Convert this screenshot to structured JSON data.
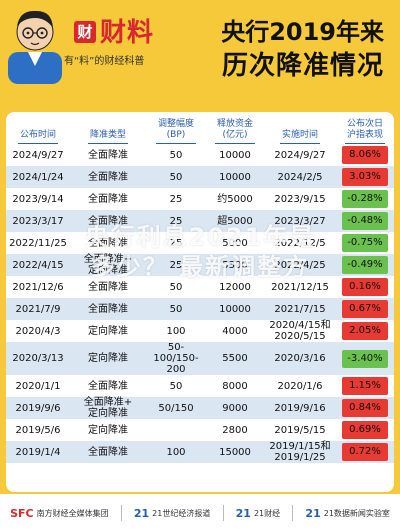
{
  "brand": {
    "logo": "财",
    "name": "财料",
    "tagline": "有“料”的财经科普"
  },
  "title": {
    "line1": "央行2019年来",
    "line2": "历次降准情况"
  },
  "table": {
    "headers": [
      "公布时间",
      "降准类型",
      "调整幅度\n(BP)",
      "释放资金\n(亿元)",
      "实施时间",
      "公布次日\n沪指表现"
    ],
    "rows": [
      {
        "announce": "2024/9/27",
        "type": "全面降准",
        "bp": "50",
        "funds": "10000",
        "effective": "2024/9/27",
        "change": "8.06%",
        "dir": "up"
      },
      {
        "announce": "2024/1/24",
        "type": "全面降准",
        "bp": "50",
        "funds": "10000",
        "effective": "2024/2/5",
        "change": "3.03%",
        "dir": "up"
      },
      {
        "announce": "2023/9/14",
        "type": "全面降准",
        "bp": "25",
        "funds": "约5000",
        "effective": "2023/9/15",
        "change": "-0.28%",
        "dir": "down"
      },
      {
        "announce": "2023/3/17",
        "type": "全面降准",
        "bp": "25",
        "funds": "超5000",
        "effective": "2023/3/27",
        "change": "-0.48%",
        "dir": "down"
      },
      {
        "announce": "2022/11/25",
        "type": "全面降准",
        "bp": "25",
        "funds": "5000",
        "effective": "2022/12/5",
        "change": "-0.75%",
        "dir": "down"
      },
      {
        "announce": "2022/4/15",
        "type": "全面降准+\n定向降准",
        "bp": "25",
        "funds": "5300",
        "effective": "2022/4/25",
        "change": "-0.49%",
        "dir": "down"
      },
      {
        "announce": "2021/12/6",
        "type": "全面降准",
        "bp": "50",
        "funds": "12000",
        "effective": "2021/12/15",
        "change": "0.16%",
        "dir": "up"
      },
      {
        "announce": "2021/7/9",
        "type": "全面降准",
        "bp": "50",
        "funds": "10000",
        "effective": "2021/7/15",
        "change": "0.67%",
        "dir": "up"
      },
      {
        "announce": "2020/4/3",
        "type": "定向降准",
        "bp": "100",
        "funds": "4000",
        "effective": "2020/4/15和\n2020/5/15",
        "change": "2.05%",
        "dir": "up"
      },
      {
        "announce": "2020/3/13",
        "type": "定向降准",
        "bp": "50-100/150-200",
        "funds": "5500",
        "effective": "2020/3/16",
        "change": "-3.40%",
        "dir": "down"
      },
      {
        "announce": "2020/1/1",
        "type": "全面降准",
        "bp": "50",
        "funds": "8000",
        "effective": "2020/1/6",
        "change": "1.15%",
        "dir": "up"
      },
      {
        "announce": "2019/9/6",
        "type": "全面降准+\n定向降准",
        "bp": "50/150",
        "funds": "9000",
        "effective": "2019/9/16",
        "change": "0.84%",
        "dir": "up"
      },
      {
        "announce": "2019/5/6",
        "type": "定向降准",
        "bp": "",
        "funds": "2800",
        "effective": "2019/5/15",
        "change": "0.69%",
        "dir": "up"
      },
      {
        "announce": "2019/1/4",
        "type": "全面降准",
        "bp": "100",
        "funds": "15000",
        "effective": "2019/1/15和\n2019/1/25",
        "change": "0.72%",
        "dir": "up"
      }
    ]
  },
  "watermark": {
    "line1": "央行利息2021年是",
    "line2": "多少？ 最新调整方"
  },
  "footer": [
    {
      "mark": "SFC",
      "text": "南方财经全媒体集团"
    },
    {
      "mark": "21",
      "text": "21世纪经济报道"
    },
    {
      "mark": "21",
      "text": "21财经"
    },
    {
      "mark": "21",
      "text": "21数据新闻实验室"
    }
  ],
  "colors": {
    "background": "#f6c93a",
    "up": "#e63a32",
    "down": "#6bc14e",
    "header_text": "#2a5fb0",
    "stripe": "#dbe6f3"
  }
}
